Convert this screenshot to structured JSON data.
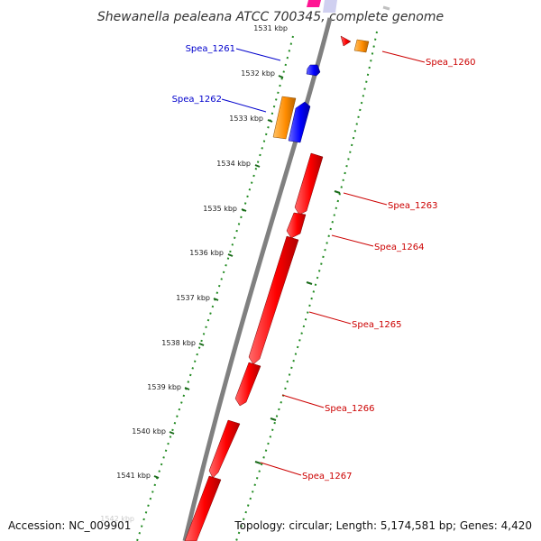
{
  "title": "Shewanella pealeana ATCC 700345, complete genome",
  "footer": {
    "accession": "Accession: NC_009901",
    "summary": "Topology: circular; Length: 5,174,581 bp; Genes: 4,420"
  },
  "colors": {
    "backbone": "#808080",
    "tick_ring": "#228b22",
    "forward_cds": "#ff0000",
    "reverse_cds": "#0000ff",
    "rna": "#ff8c00",
    "other": "#ff1493",
    "forward_label": "#cc0000",
    "reverse_label": "#0000cc"
  },
  "kbp_labels": [
    "1531 kbp",
    "1532 kbp",
    "1533 kbp",
    "1534 kbp",
    "1535 kbp",
    "1536 kbp",
    "1537 kbp",
    "1538 kbp",
    "1539 kbp",
    "1540 kbp",
    "1541 kbp",
    "1542 kbp"
  ],
  "gene_labels": {
    "reverse": [
      "Spea_1261",
      "Spea_1262"
    ],
    "forward": [
      "Spea_1260",
      "Spea_1263",
      "Spea_1264",
      "Spea_1265",
      "Spea_1266",
      "Spea_1267"
    ]
  }
}
